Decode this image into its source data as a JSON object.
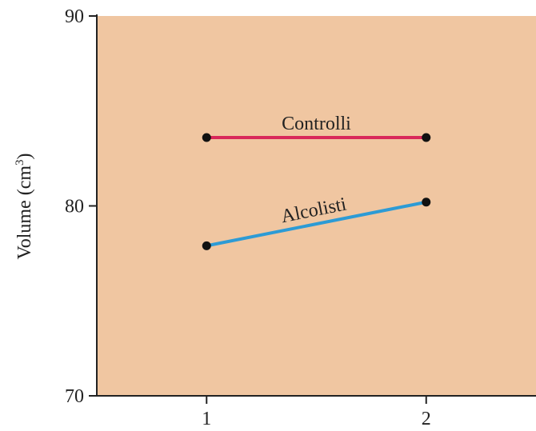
{
  "chart_data": {
    "type": "line",
    "x": [
      1,
      2
    ],
    "x_tick_labels": [
      "1",
      "2"
    ],
    "y_ticks": [
      70,
      80,
      90
    ],
    "y_tick_labels": [
      "70",
      "80",
      "90"
    ],
    "ylim": [
      70,
      90
    ],
    "xlim": [
      0.5,
      2.5
    ],
    "ylabel": "Volume (cm",
    "ylabel_superscript": "3",
    "ylabel_suffix": ")",
    "title": "",
    "xlabel": "",
    "grid": false,
    "plot_background": "#F0C6A1",
    "series": [
      {
        "name": "Controlli",
        "values": [
          83.6,
          83.6
        ],
        "color": "#D9285A"
      },
      {
        "name": "Alcolisti",
        "values": [
          77.9,
          80.2
        ],
        "color": "#2D9BD5"
      }
    ]
  }
}
